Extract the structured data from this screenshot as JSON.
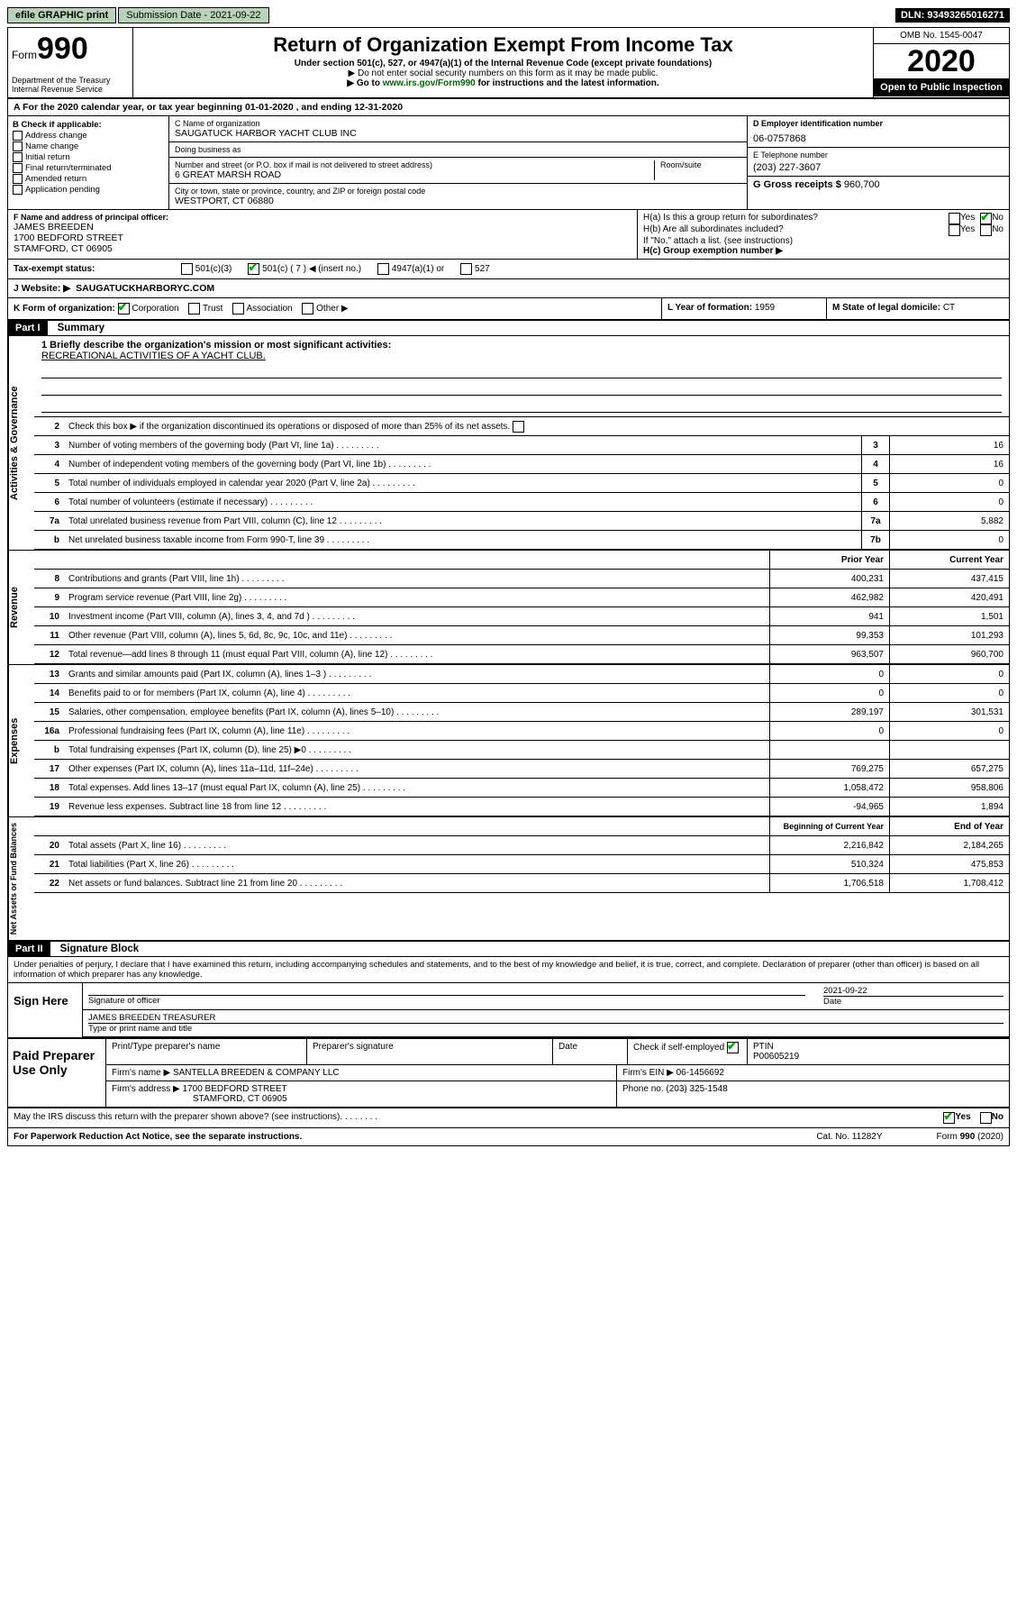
{
  "topbar": {
    "efile": "efile GRAPHIC print",
    "subdate_label": "Submission Date - 2021-09-22",
    "dln": "DLN: 93493265016271"
  },
  "header": {
    "form_word": "Form",
    "form_num": "990",
    "dept": "Department of the Treasury\nInternal Revenue Service",
    "title": "Return of Organization Exempt From Income Tax",
    "sub1": "Under section 501(c), 527, or 4947(a)(1) of the Internal Revenue Code (except private foundations)",
    "sub2": "▶ Do not enter social security numbers on this form as it may be made public.",
    "sub3": "▶ Go to www.irs.gov/Form990 for instructions and the latest information.",
    "omb": "OMB No. 1545-0047",
    "year": "2020",
    "open": "Open to Public Inspection"
  },
  "period": "A For the 2020 calendar year, or tax year beginning 01-01-2020    , and ending 12-31-2020",
  "boxB": {
    "label": "B Check if applicable:",
    "opts": [
      "Address change",
      "Name change",
      "Initial return",
      "Final return/terminated",
      "Amended return",
      "Application pending"
    ]
  },
  "boxC": {
    "name_lbl": "C Name of organization",
    "name": "SAUGATUCK HARBOR YACHT CLUB INC",
    "dba_lbl": "Doing business as",
    "addr_lbl": "Number and street (or P.O. box if mail is not delivered to street address)",
    "room_lbl": "Room/suite",
    "addr": "6 GREAT MARSH ROAD",
    "city_lbl": "City or town, state or province, country, and ZIP or foreign postal code",
    "city": "WESTPORT, CT  06880"
  },
  "boxD": {
    "lbl": "D Employer identification number",
    "val": "06-0757868"
  },
  "boxE": {
    "lbl": "E Telephone number",
    "val": "(203) 227-3607"
  },
  "boxG": {
    "lbl": "G Gross receipts $",
    "val": "960,700"
  },
  "boxF": {
    "lbl": "F Name and address of principal officer:",
    "name": "JAMES BREEDEN",
    "addr1": "1700 BEDFORD STREET",
    "addr2": "STAMFORD, CT  06905"
  },
  "boxH": {
    "ha": "H(a) Is this a group return for subordinates?",
    "hb": "H(b) Are all subordinates included?",
    "hbnote": "If \"No,\" attach a list. (see instructions)",
    "hc": "H(c) Group exemption number ▶",
    "yes": "Yes",
    "no": "No"
  },
  "taxstatus": {
    "lbl": "Tax-exempt status:",
    "c3": "501(c)(3)",
    "c": "501(c) ( 7 ) ◀ (insert no.)",
    "a1": "4947(a)(1) or",
    "s527": "527"
  },
  "website": {
    "lbl": "J  Website: ▶",
    "val": "SAUGATUCKHARBORYC.COM"
  },
  "rowK": {
    "lbl": "K Form of organization:",
    "corp": "Corporation",
    "trust": "Trust",
    "assoc": "Association",
    "other": "Other ▶"
  },
  "rowL": {
    "lbl": "L Year of formation:",
    "val": "1959"
  },
  "rowM": {
    "lbl": "M State of legal domicile:",
    "val": "CT"
  },
  "part1": {
    "hdr": "Part I",
    "title": "Summary"
  },
  "mission": {
    "q": "1  Briefly describe the organization's mission or most significant activities:",
    "a": "RECREATIONAL ACTIVITIES OF A YACHT CLUB."
  },
  "line2": "Check this box ▶      if the organization discontinued its operations or disposed of more than 25% of its net assets.",
  "govLines": [
    {
      "n": "3",
      "d": "Number of voting members of the governing body (Part VI, line 1a)",
      "c": "3",
      "v": "16"
    },
    {
      "n": "4",
      "d": "Number of independent voting members of the governing body (Part VI, line 1b)",
      "c": "4",
      "v": "16"
    },
    {
      "n": "5",
      "d": "Total number of individuals employed in calendar year 2020 (Part V, line 2a)",
      "c": "5",
      "v": "0"
    },
    {
      "n": "6",
      "d": "Total number of volunteers (estimate if necessary)",
      "c": "6",
      "v": "0"
    },
    {
      "n": "7a",
      "d": "Total unrelated business revenue from Part VIII, column (C), line 12",
      "c": "7a",
      "v": "5,882"
    },
    {
      "n": "b",
      "d": "Net unrelated business taxable income from Form 990-T, line 39",
      "c": "7b",
      "v": "0"
    }
  ],
  "revHdr": {
    "prior": "Prior Year",
    "curr": "Current Year"
  },
  "revLines": [
    {
      "n": "8",
      "d": "Contributions and grants (Part VIII, line 1h)",
      "p": "400,231",
      "c": "437,415"
    },
    {
      "n": "9",
      "d": "Program service revenue (Part VIII, line 2g)",
      "p": "462,982",
      "c": "420,491"
    },
    {
      "n": "10",
      "d": "Investment income (Part VIII, column (A), lines 3, 4, and 7d )",
      "p": "941",
      "c": "1,501"
    },
    {
      "n": "11",
      "d": "Other revenue (Part VIII, column (A), lines 5, 6d, 8c, 9c, 10c, and 11e)",
      "p": "99,353",
      "c": "101,293"
    },
    {
      "n": "12",
      "d": "Total revenue—add lines 8 through 11 (must equal Part VIII, column (A), line 12)",
      "p": "963,507",
      "c": "960,700"
    }
  ],
  "expLines": [
    {
      "n": "13",
      "d": "Grants and similar amounts paid (Part IX, column (A), lines 1–3 )",
      "p": "0",
      "c": "0"
    },
    {
      "n": "14",
      "d": "Benefits paid to or for members (Part IX, column (A), line 4)",
      "p": "0",
      "c": "0"
    },
    {
      "n": "15",
      "d": "Salaries, other compensation, employee benefits (Part IX, column (A), lines 5–10)",
      "p": "289,197",
      "c": "301,531"
    },
    {
      "n": "16a",
      "d": "Professional fundraising fees (Part IX, column (A), line 11e)",
      "p": "0",
      "c": "0"
    },
    {
      "n": "b",
      "d": "Total fundraising expenses (Part IX, column (D), line 25) ▶0",
      "p": "",
      "c": ""
    },
    {
      "n": "17",
      "d": "Other expenses (Part IX, column (A), lines 11a–11d, 11f–24e)",
      "p": "769,275",
      "c": "657,275"
    },
    {
      "n": "18",
      "d": "Total expenses. Add lines 13–17 (must equal Part IX, column (A), line 25)",
      "p": "1,058,472",
      "c": "958,806"
    },
    {
      "n": "19",
      "d": "Revenue less expenses. Subtract line 18 from line 12",
      "p": "-94,965",
      "c": "1,894"
    }
  ],
  "balHdr": {
    "beg": "Beginning of Current Year",
    "end": "End of Year"
  },
  "balLines": [
    {
      "n": "20",
      "d": "Total assets (Part X, line 16)",
      "p": "2,216,842",
      "c": "2,184,265"
    },
    {
      "n": "21",
      "d": "Total liabilities (Part X, line 26)",
      "p": "510,324",
      "c": "475,853"
    },
    {
      "n": "22",
      "d": "Net assets or fund balances. Subtract line 21 from line 20",
      "p": "1,706,518",
      "c": "1,708,412"
    }
  ],
  "vtabs": {
    "gov": "Activities & Governance",
    "rev": "Revenue",
    "exp": "Expenses",
    "bal": "Net Assets or Fund Balances"
  },
  "part2": {
    "hdr": "Part II",
    "title": "Signature Block"
  },
  "sigtext": "Under penalties of perjury, I declare that I have examined this return, including accompanying schedules and statements, and to the best of my knowledge and belief, it is true, correct, and complete. Declaration of preparer (other than officer) is based on all information of which preparer has any knowledge.",
  "sign": {
    "here": "Sign Here",
    "sigoff": "Signature of officer",
    "date": "2021-09-22",
    "datelbl": "Date",
    "name": "JAMES BREEDEN  TREASURER",
    "typelbl": "Type or print name and title"
  },
  "paid": {
    "left": "Paid Preparer Use Only",
    "h1": "Print/Type preparer's name",
    "h2": "Preparer's signature",
    "h3": "Date",
    "h4": "Check       if self-employed",
    "h5": "PTIN",
    "ptin": "P00605219",
    "firm_lbl": "Firm's name    ▶",
    "firm": "SANTELLA BREEDEN & COMPANY LLC",
    "ein_lbl": "Firm's EIN ▶",
    "ein": "06-1456692",
    "addr_lbl": "Firm's address ▶",
    "addr1": "1700 BEDFORD STREET",
    "addr2": "STAMFORD, CT  06905",
    "phone_lbl": "Phone no.",
    "phone": "(203) 325-1548"
  },
  "discuss": "May the IRS discuss this return with the preparer shown above? (see instructions)",
  "footer": {
    "pra": "For Paperwork Reduction Act Notice, see the separate instructions.",
    "cat": "Cat. No. 11282Y",
    "form": "Form 990 (2020)"
  }
}
